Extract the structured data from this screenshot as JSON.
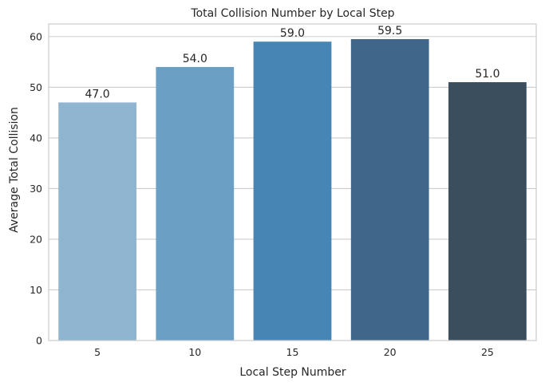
{
  "chart_data": {
    "type": "bar",
    "title": "Total Collision Number by Local Step",
    "xlabel": "Local Step Number",
    "ylabel": "Average Total Collision",
    "categories": [
      "5",
      "10",
      "15",
      "20",
      "25"
    ],
    "values": [
      47.0,
      54.0,
      59.0,
      59.5,
      51.0
    ],
    "data_labels": [
      "47.0",
      "54.0",
      "59.0",
      "59.5",
      "51.0"
    ],
    "ylim": [
      0,
      62.5
    ],
    "yticks": [
      0,
      10,
      20,
      30,
      40,
      50,
      60
    ],
    "grid": "horizontal",
    "bar_colors": [
      "#8fb5d1",
      "#6b9fc3",
      "#4785b4",
      "#40678a",
      "#3a4e5e"
    ],
    "colors": {
      "grid": "#cccccc",
      "frame": "#cccccc",
      "text": "#262626"
    }
  }
}
